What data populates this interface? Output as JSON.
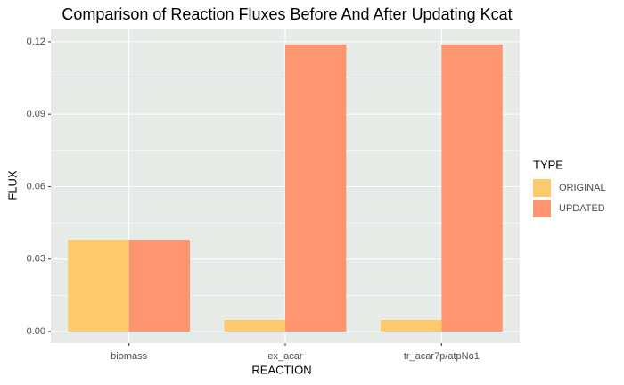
{
  "chart_data": {
    "type": "bar",
    "title": "Comparison of Reaction Fluxes Before And After Updating Kcat",
    "x_label": "REACTION",
    "y_label": "FLUX",
    "legend_title": "TYPE",
    "categories": [
      "biomass",
      "ex_acar",
      "tr_acar7p/atpNo1"
    ],
    "series": [
      {
        "name": "ORIGINAL",
        "color": "#fdc96b",
        "values": [
          0.038,
          0.0048,
          0.0048
        ]
      },
      {
        "name": "UPDATED",
        "color": "#fc9570",
        "values": [
          0.038,
          0.1189,
          0.1189
        ]
      }
    ],
    "ylim": [
      -0.0048,
      0.1255
    ],
    "yticks": [
      {
        "value": 0,
        "label": "0.00"
      },
      0.03,
      0.06,
      0.09,
      0.12
    ],
    "grid": true,
    "legend_position": "right"
  }
}
